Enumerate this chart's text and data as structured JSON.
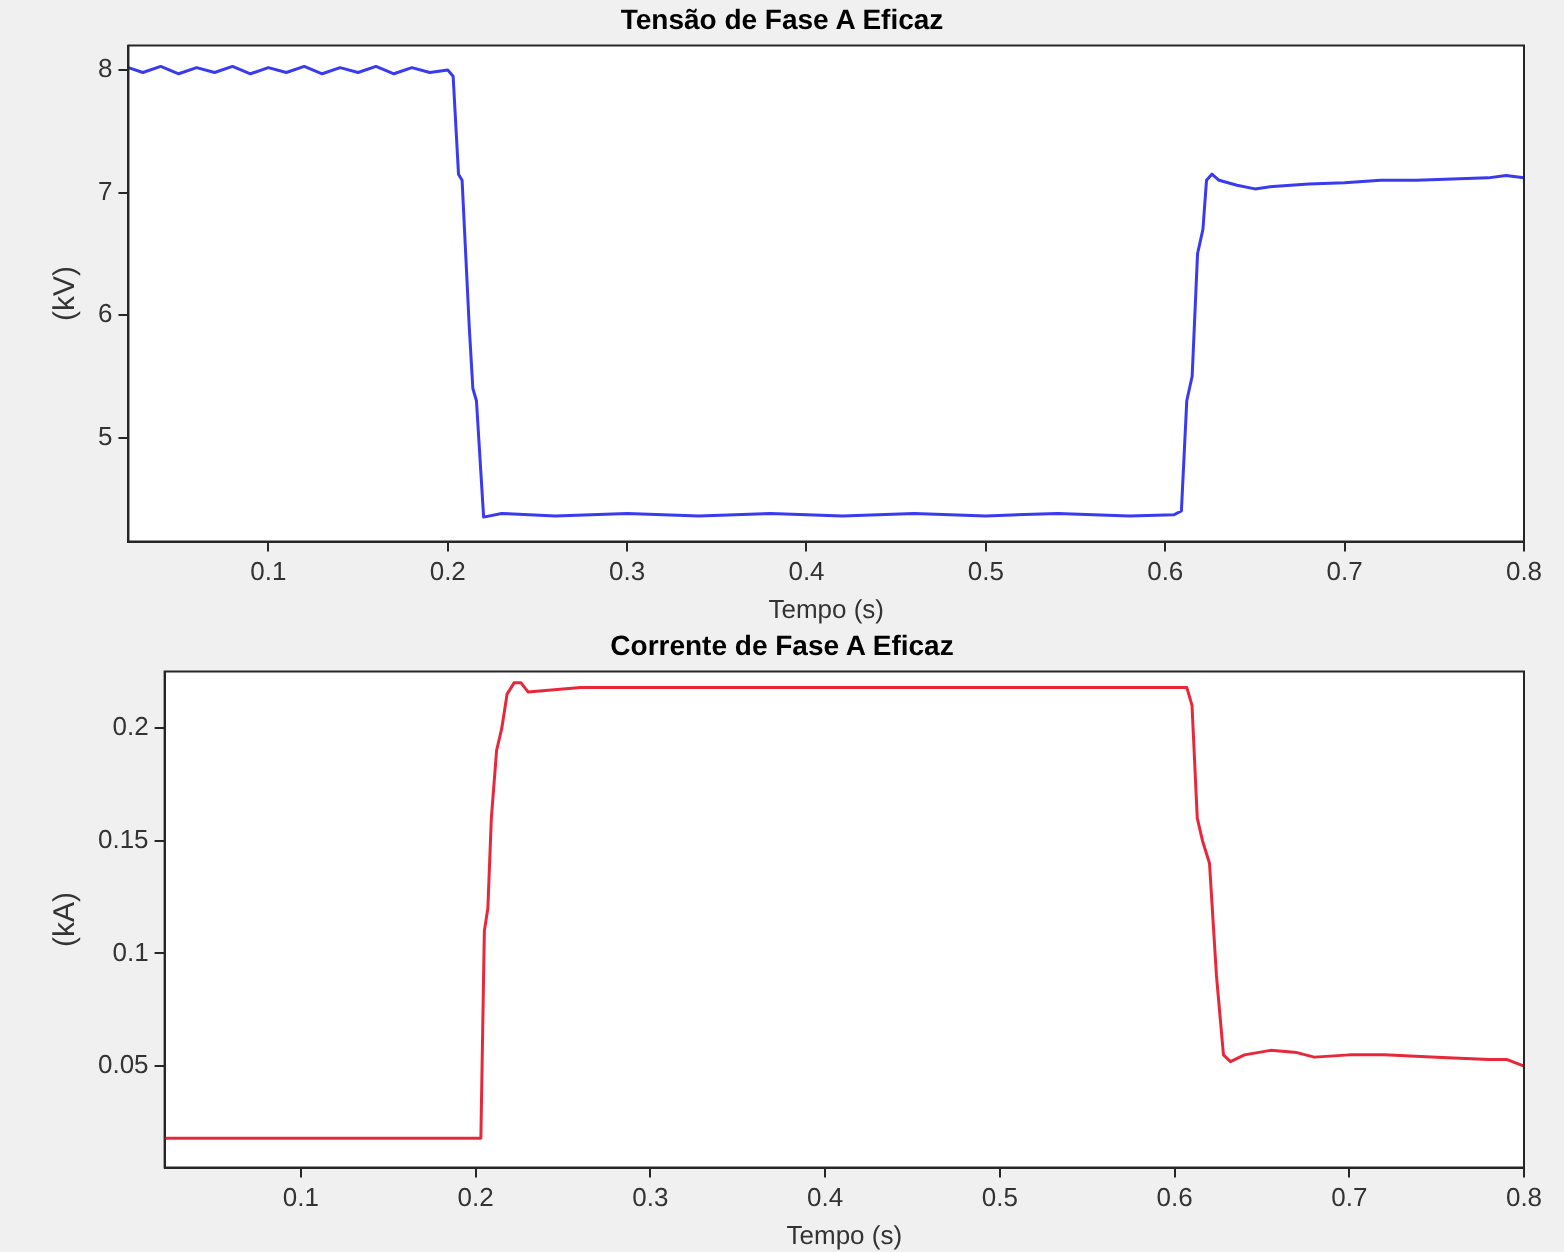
{
  "chart_data": [
    {
      "type": "line",
      "title": "Tensão de Fase A Eficaz",
      "xlabel": "Tempo (s)",
      "ylabel": "(kV)",
      "xlim": [
        0.022,
        0.8
      ],
      "ylim": [
        4.15,
        8.2
      ],
      "xticks": [
        0.1,
        0.2,
        0.3,
        0.4,
        0.5,
        0.6,
        0.7,
        0.8
      ],
      "yticks": [
        5,
        6,
        7,
        8
      ],
      "legend": false,
      "grid": false,
      "series": [
        {
          "color": "#3a3af0",
          "x": [
            0.022,
            0.03,
            0.04,
            0.05,
            0.06,
            0.07,
            0.08,
            0.09,
            0.1,
            0.11,
            0.12,
            0.13,
            0.14,
            0.15,
            0.16,
            0.17,
            0.18,
            0.19,
            0.2,
            0.203,
            0.206,
            0.208,
            0.212,
            0.214,
            0.216,
            0.22,
            0.23,
            0.26,
            0.3,
            0.34,
            0.38,
            0.42,
            0.46,
            0.5,
            0.54,
            0.58,
            0.605,
            0.609,
            0.612,
            0.615,
            0.618,
            0.621,
            0.623,
            0.626,
            0.63,
            0.64,
            0.65,
            0.66,
            0.68,
            0.7,
            0.72,
            0.74,
            0.76,
            0.78,
            0.79,
            0.8
          ],
          "values": [
            8.02,
            7.98,
            8.03,
            7.97,
            8.02,
            7.98,
            8.03,
            7.97,
            8.02,
            7.98,
            8.03,
            7.97,
            8.02,
            7.98,
            8.03,
            7.97,
            8.02,
            7.98,
            8.0,
            7.95,
            7.15,
            7.1,
            5.9,
            5.4,
            5.3,
            4.35,
            4.38,
            4.36,
            4.38,
            4.36,
            4.38,
            4.36,
            4.38,
            4.36,
            4.38,
            4.36,
            4.37,
            4.4,
            5.3,
            5.5,
            6.5,
            6.7,
            7.1,
            7.15,
            7.1,
            7.06,
            7.03,
            7.05,
            7.07,
            7.08,
            7.1,
            7.1,
            7.11,
            7.12,
            7.14,
            7.12
          ]
        }
      ]
    },
    {
      "type": "line",
      "title": "Corrente de Fase A Eficaz",
      "xlabel": "Tempo (s)",
      "ylabel": "(kA)",
      "xlim": [
        0.022,
        0.8
      ],
      "ylim": [
        0.005,
        0.225
      ],
      "xticks": [
        0.1,
        0.2,
        0.3,
        0.4,
        0.5,
        0.6,
        0.7,
        0.8
      ],
      "yticks": [
        0.05,
        0.1,
        0.15,
        0.2
      ],
      "legend": false,
      "grid": false,
      "series": [
        {
          "color": "#e8283a",
          "x": [
            0.022,
            0.1,
            0.2,
            0.203,
            0.205,
            0.207,
            0.209,
            0.212,
            0.215,
            0.218,
            0.222,
            0.226,
            0.23,
            0.26,
            0.3,
            0.34,
            0.38,
            0.42,
            0.46,
            0.5,
            0.54,
            0.58,
            0.607,
            0.61,
            0.613,
            0.616,
            0.62,
            0.624,
            0.628,
            0.632,
            0.64,
            0.655,
            0.67,
            0.68,
            0.7,
            0.72,
            0.75,
            0.78,
            0.79,
            0.8
          ],
          "values": [
            0.018,
            0.018,
            0.018,
            0.018,
            0.11,
            0.12,
            0.16,
            0.19,
            0.2,
            0.215,
            0.22,
            0.22,
            0.216,
            0.218,
            0.218,
            0.218,
            0.218,
            0.218,
            0.218,
            0.218,
            0.218,
            0.218,
            0.218,
            0.21,
            0.16,
            0.15,
            0.14,
            0.09,
            0.055,
            0.052,
            0.055,
            0.057,
            0.056,
            0.054,
            0.055,
            0.055,
            0.054,
            0.053,
            0.053,
            0.05
          ]
        }
      ]
    }
  ]
}
